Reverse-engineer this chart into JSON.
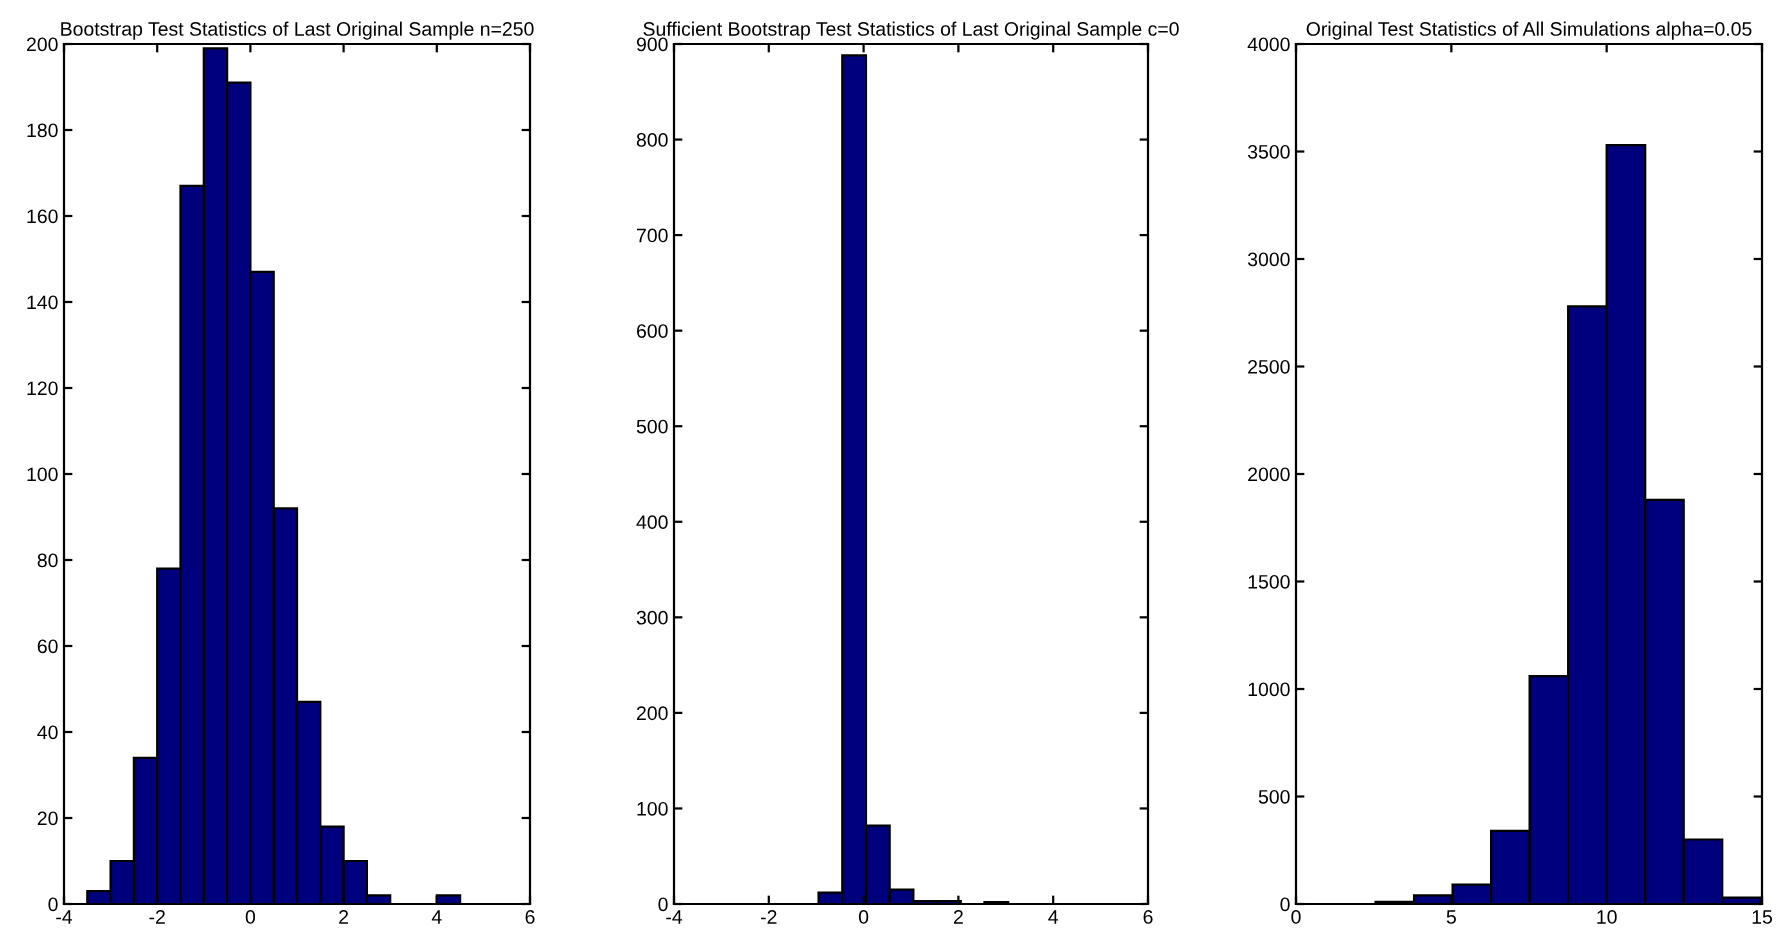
{
  "chart_data": [
    {
      "type": "histogram",
      "title": "Bootstrap Test Statistics of Last Original Sample n=250",
      "bins": [
        -3.5,
        -3,
        -2.5,
        -2,
        -1.5,
        -1,
        -0.5,
        0,
        0.5,
        1,
        1.5,
        2,
        2.5,
        3,
        3.5,
        4,
        4.5
      ],
      "values": [
        3,
        10,
        34,
        78,
        167,
        199,
        191,
        147,
        92,
        47,
        18,
        10,
        2,
        0,
        0,
        2
      ],
      "color": "#00007f",
      "xlim": [
        -4,
        6
      ],
      "xticks": [
        -4,
        -2,
        0,
        2,
        4,
        6
      ],
      "ylim": [
        0,
        200
      ],
      "yticks": [
        0,
        20,
        40,
        60,
        80,
        100,
        120,
        140,
        160,
        180,
        200
      ],
      "grid": false
    },
    {
      "type": "histogram",
      "title": "Sufficient Bootstrap Test Statistics of Last Original Sample c=0",
      "bins": [
        -3.45,
        -2.95,
        -2.45,
        -1.95,
        -1.45,
        -0.95,
        -0.45,
        0.05,
        0.55,
        1.05,
        1.55,
        2.05,
        2.55,
        3.05,
        3.55,
        4.05,
        4.55,
        5.05
      ],
      "values": [
        0,
        0,
        0,
        0,
        0,
        12,
        888,
        82,
        15,
        3,
        3,
        null,
        2,
        0,
        0,
        0,
        0
      ],
      "color": "#00007f",
      "xlim": [
        -4,
        6
      ],
      "xticks": [
        -4,
        -2,
        0,
        2,
        4,
        6
      ],
      "ylim": [
        0,
        900
      ],
      "yticks": [
        0,
        100,
        200,
        300,
        400,
        500,
        600,
        700,
        800,
        900
      ],
      "grid": false
    },
    {
      "type": "histogram",
      "title": "Original Test Statistics of All Simulations alpha=0.05",
      "bins": [
        0.08,
        1.32,
        2.56,
        3.8,
        5.04,
        6.28,
        7.52,
        8.76,
        10.0,
        11.24,
        12.48,
        13.72,
        14.96
      ],
      "values": [
        0,
        0,
        10,
        40,
        90,
        340,
        1060,
        2780,
        3530,
        1880,
        300,
        30
      ],
      "color": "#00007f",
      "xlim": [
        0,
        15
      ],
      "xticks": [
        0,
        5,
        10,
        15
      ],
      "ylim": [
        0,
        4000
      ],
      "yticks": [
        0,
        500,
        1000,
        1500,
        2000,
        2500,
        3000,
        3500,
        4000
      ],
      "grid": false
    }
  ]
}
